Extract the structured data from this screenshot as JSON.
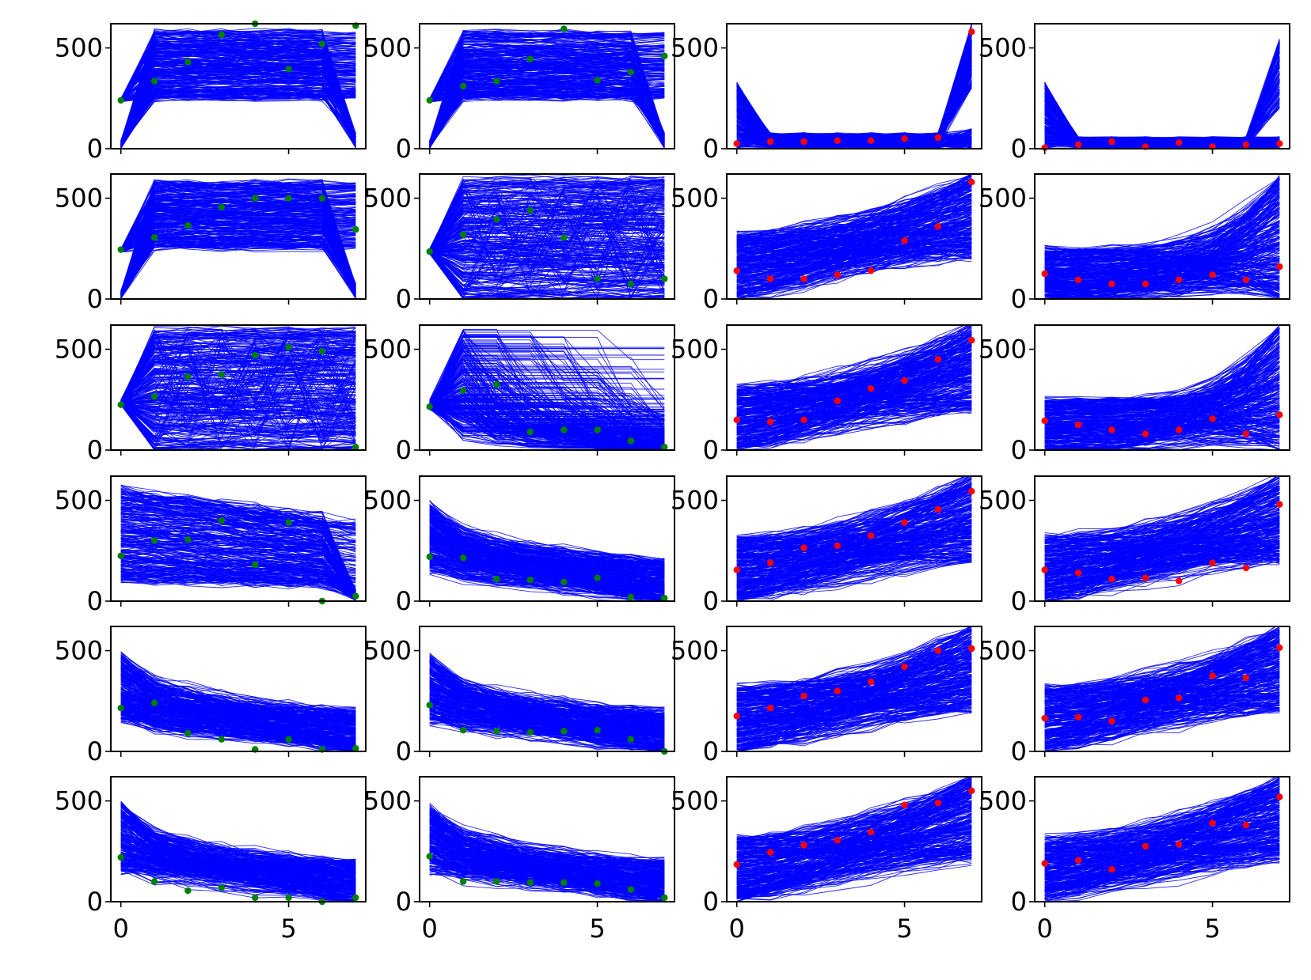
{
  "chart_data": [
    {
      "panel_row": 1,
      "panel_col": 1,
      "type": "line",
      "band": "flat-high",
      "dots": [
        240,
        335,
        430,
        565,
        620,
        395,
        520,
        610
      ],
      "dot_color": "#008000",
      "ylim": [
        0,
        620
      ],
      "xlim": [
        -0.3,
        7.3
      ],
      "yticks": [
        "0",
        "500"
      ],
      "xticks": [],
      "lines": {
        "count": 300,
        "color": "#0000ff"
      }
    },
    {
      "panel_row": 1,
      "panel_col": 2,
      "type": "line",
      "band": "flat-high",
      "dots": [
        240,
        310,
        335,
        445,
        595,
        340,
        380,
        460
      ],
      "dot_color": "#008000",
      "ylim": [
        0,
        620
      ],
      "xlim": [
        -0.3,
        7.3
      ],
      "yticks": [
        "0",
        "500"
      ],
      "xticks": [],
      "lines": {
        "count": 300,
        "color": "#0000ff"
      }
    },
    {
      "panel_row": 1,
      "panel_col": 3,
      "type": "line",
      "band": "low-spike",
      "dots": [
        25,
        35,
        35,
        40,
        40,
        50,
        55,
        580
      ],
      "dot_color": "#ff0000",
      "ylim": [
        0,
        620
      ],
      "xlim": [
        -0.3,
        7.3
      ],
      "yticks": [
        "0",
        "500"
      ],
      "xticks": [],
      "lines": {
        "count": 300,
        "color": "#0000ff"
      }
    },
    {
      "panel_row": 1,
      "panel_col": 4,
      "type": "line",
      "band": "low-spike-weak",
      "dots": [
        5,
        20,
        35,
        10,
        30,
        10,
        20,
        25
      ],
      "dot_color": "#ff0000",
      "ylim": [
        0,
        620
      ],
      "xlim": [
        -0.3,
        7.3
      ],
      "yticks": [
        "0",
        "500"
      ],
      "xticks": [],
      "lines": {
        "count": 300,
        "color": "#0000ff"
      }
    },
    {
      "panel_row": 2,
      "panel_col": 1,
      "type": "line",
      "band": "flat-high",
      "dots": [
        245,
        305,
        365,
        455,
        500,
        500,
        500,
        345
      ],
      "dot_color": "#008000",
      "ylim": [
        0,
        620
      ],
      "xlim": [
        -0.3,
        7.3
      ],
      "yticks": [
        "0",
        "500"
      ],
      "xticks": [],
      "lines": {
        "count": 300,
        "color": "#0000ff"
      }
    },
    {
      "panel_row": 2,
      "panel_col": 2,
      "type": "line",
      "band": "flat-mixed",
      "dots": [
        235,
        320,
        395,
        440,
        305,
        100,
        75,
        100
      ],
      "dot_color": "#008000",
      "ylim": [
        0,
        620
      ],
      "xlim": [
        -0.3,
        7.3
      ],
      "yticks": [
        "0",
        "500"
      ],
      "xticks": [],
      "lines": {
        "count": 300,
        "color": "#0000ff"
      }
    },
    {
      "panel_row": 2,
      "panel_col": 3,
      "type": "line",
      "band": "rising",
      "dots": [
        140,
        100,
        100,
        120,
        140,
        290,
        360,
        580
      ],
      "dot_color": "#ff0000",
      "ylim": [
        0,
        620
      ],
      "xlim": [
        -0.3,
        7.3
      ],
      "yticks": [
        "0",
        "500"
      ],
      "xticks": [],
      "lines": {
        "count": 300,
        "color": "#0000ff"
      }
    },
    {
      "panel_row": 2,
      "panel_col": 4,
      "type": "line",
      "band": "low-rising",
      "dots": [
        125,
        95,
        75,
        75,
        95,
        120,
        95,
        160
      ],
      "dot_color": "#ff0000",
      "ylim": [
        0,
        620
      ],
      "xlim": [
        -0.3,
        7.3
      ],
      "yticks": [
        "0",
        "500"
      ],
      "xticks": [],
      "lines": {
        "count": 300,
        "color": "#0000ff"
      }
    },
    {
      "panel_row": 3,
      "panel_col": 1,
      "type": "line",
      "band": "flat-mixed",
      "dots": [
        225,
        265,
        365,
        375,
        470,
        510,
        490,
        15
      ],
      "dot_color": "#008000",
      "ylim": [
        0,
        620
      ],
      "xlim": [
        -0.3,
        7.3
      ],
      "yticks": [
        "0",
        "500"
      ],
      "xticks": [],
      "lines": {
        "count": 300,
        "color": "#0000ff"
      }
    },
    {
      "panel_row": 3,
      "panel_col": 2,
      "type": "line",
      "band": "falling-steps",
      "dots": [
        215,
        295,
        325,
        90,
        100,
        100,
        45,
        15
      ],
      "dot_color": "#008000",
      "ylim": [
        0,
        620
      ],
      "xlim": [
        -0.3,
        7.3
      ],
      "yticks": [
        "0",
        "500"
      ],
      "xticks": [],
      "lines": {
        "count": 300,
        "color": "#0000ff"
      }
    },
    {
      "panel_row": 3,
      "panel_col": 3,
      "type": "line",
      "band": "rising",
      "dots": [
        150,
        140,
        150,
        245,
        305,
        345,
        450,
        545
      ],
      "dot_color": "#ff0000",
      "ylim": [
        0,
        620
      ],
      "xlim": [
        -0.3,
        7.3
      ],
      "yticks": [
        "0",
        "500"
      ],
      "xticks": [],
      "lines": {
        "count": 300,
        "color": "#0000ff"
      }
    },
    {
      "panel_row": 3,
      "panel_col": 4,
      "type": "line",
      "band": "low-rising",
      "dots": [
        145,
        125,
        100,
        80,
        100,
        155,
        80,
        175
      ],
      "dot_color": "#ff0000",
      "ylim": [
        0,
        620
      ],
      "xlim": [
        -0.3,
        7.3
      ],
      "yticks": [
        "0",
        "500"
      ],
      "xticks": [],
      "lines": {
        "count": 300,
        "color": "#0000ff"
      }
    },
    {
      "panel_row": 4,
      "panel_col": 1,
      "type": "line",
      "band": "falling-soft",
      "dots": [
        225,
        300,
        305,
        400,
        180,
        390,
        0,
        25
      ],
      "dot_color": "#008000",
      "ylim": [
        0,
        620
      ],
      "xlim": [
        -0.3,
        7.3
      ],
      "yticks": [
        "0",
        "500"
      ],
      "xticks": [],
      "lines": {
        "count": 300,
        "color": "#0000ff"
      }
    },
    {
      "panel_row": 4,
      "panel_col": 2,
      "type": "line",
      "band": "falling",
      "dots": [
        220,
        215,
        110,
        105,
        95,
        115,
        20,
        15
      ],
      "dot_color": "#008000",
      "ylim": [
        0,
        620
      ],
      "xlim": [
        -0.3,
        7.3
      ],
      "yticks": [
        "0",
        "500"
      ],
      "xticks": [],
      "lines": {
        "count": 300,
        "color": "#0000ff"
      }
    },
    {
      "panel_row": 4,
      "panel_col": 3,
      "type": "line",
      "band": "rising",
      "dots": [
        155,
        190,
        265,
        275,
        325,
        390,
        455,
        545
      ],
      "dot_color": "#ff0000",
      "ylim": [
        0,
        620
      ],
      "xlim": [
        -0.3,
        7.3
      ],
      "yticks": [
        "0",
        "500"
      ],
      "xticks": [],
      "lines": {
        "count": 300,
        "color": "#0000ff"
      }
    },
    {
      "panel_row": 4,
      "panel_col": 4,
      "type": "line",
      "band": "rising",
      "dots": [
        155,
        140,
        110,
        115,
        100,
        190,
        165,
        480
      ],
      "dot_color": "#ff0000",
      "ylim": [
        0,
        620
      ],
      "xlim": [
        -0.3,
        7.3
      ],
      "yticks": [
        "0",
        "500"
      ],
      "xticks": [],
      "lines": {
        "count": 300,
        "color": "#0000ff"
      }
    },
    {
      "panel_row": 5,
      "panel_col": 1,
      "type": "line",
      "band": "falling",
      "dots": [
        215,
        240,
        90,
        60,
        10,
        60,
        10,
        15
      ],
      "dot_color": "#008000",
      "ylim": [
        0,
        620
      ],
      "xlim": [
        -0.3,
        7.3
      ],
      "yticks": [
        "0",
        "500"
      ],
      "xticks": [],
      "lines": {
        "count": 300,
        "color": "#0000ff"
      }
    },
    {
      "panel_row": 5,
      "panel_col": 2,
      "type": "line",
      "band": "falling",
      "dots": [
        230,
        105,
        100,
        95,
        100,
        105,
        60,
        0
      ],
      "dot_color": "#008000",
      "ylim": [
        0,
        620
      ],
      "xlim": [
        -0.3,
        7.3
      ],
      "yticks": [
        "0",
        "500"
      ],
      "xticks": [],
      "lines": {
        "count": 300,
        "color": "#0000ff"
      }
    },
    {
      "panel_row": 5,
      "panel_col": 3,
      "type": "line",
      "band": "rising",
      "dots": [
        175,
        215,
        275,
        300,
        345,
        420,
        500,
        510
      ],
      "dot_color": "#ff0000",
      "ylim": [
        0,
        620
      ],
      "xlim": [
        -0.3,
        7.3
      ],
      "yticks": [
        "0",
        "500"
      ],
      "xticks": [],
      "lines": {
        "count": 300,
        "color": "#0000ff"
      }
    },
    {
      "panel_row": 5,
      "panel_col": 4,
      "type": "line",
      "band": "rising",
      "dots": [
        165,
        170,
        150,
        255,
        265,
        375,
        365,
        515
      ],
      "dot_color": "#ff0000",
      "ylim": [
        0,
        620
      ],
      "xlim": [
        -0.3,
        7.3
      ],
      "yticks": [
        "0",
        "500"
      ],
      "xticks": [],
      "lines": {
        "count": 300,
        "color": "#0000ff"
      }
    },
    {
      "panel_row": 6,
      "panel_col": 1,
      "type": "line",
      "band": "falling",
      "dots": [
        220,
        100,
        55,
        70,
        20,
        20,
        0,
        20
      ],
      "dot_color": "#008000",
      "ylim": [
        0,
        620
      ],
      "xlim": [
        -0.3,
        7.3
      ],
      "yticks": [
        "0",
        "500"
      ],
      "xticks": [
        "0",
        "5"
      ],
      "lines": {
        "count": 300,
        "color": "#0000ff"
      }
    },
    {
      "panel_row": 6,
      "panel_col": 2,
      "type": "line",
      "band": "falling",
      "dots": [
        225,
        100,
        100,
        95,
        95,
        90,
        60,
        20
      ],
      "dot_color": "#008000",
      "ylim": [
        0,
        620
      ],
      "xlim": [
        -0.3,
        7.3
      ],
      "yticks": [
        "0",
        "500"
      ],
      "xticks": [
        "0",
        "5"
      ],
      "lines": {
        "count": 300,
        "color": "#0000ff"
      }
    },
    {
      "panel_row": 6,
      "panel_col": 3,
      "type": "line",
      "band": "rising",
      "dots": [
        185,
        245,
        280,
        305,
        345,
        480,
        490,
        550
      ],
      "dot_color": "#ff0000",
      "ylim": [
        0,
        620
      ],
      "xlim": [
        -0.3,
        7.3
      ],
      "yticks": [
        "0",
        "500"
      ],
      "xticks": [
        "0",
        "5"
      ],
      "lines": {
        "count": 300,
        "color": "#0000ff"
      }
    },
    {
      "panel_row": 6,
      "panel_col": 4,
      "type": "line",
      "band": "rising",
      "dots": [
        190,
        205,
        160,
        275,
        285,
        390,
        380,
        520
      ],
      "dot_color": "#ff0000",
      "ylim": [
        0,
        620
      ],
      "xlim": [
        -0.3,
        7.3
      ],
      "yticks": [
        "0",
        "500"
      ],
      "xticks": [
        "0",
        "5"
      ],
      "lines": {
        "count": 300,
        "color": "#0000ff"
      }
    }
  ]
}
